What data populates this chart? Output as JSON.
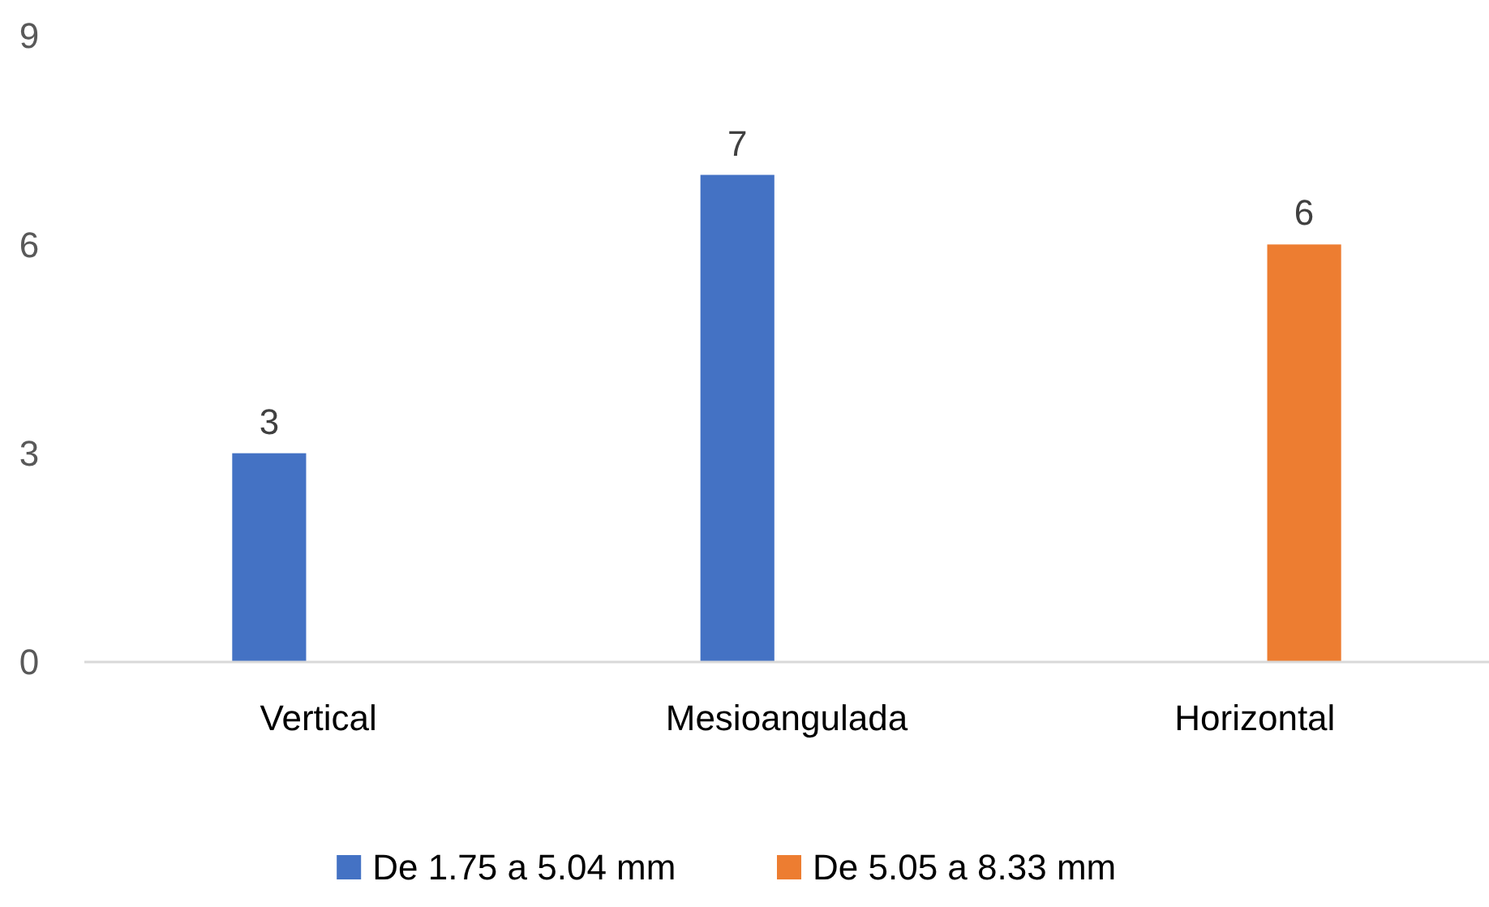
{
  "chart_data": {
    "type": "bar",
    "categories": [
      "Vertical",
      "Mesioangulada",
      "Horizontal"
    ],
    "series": [
      {
        "name": "De 1.75 a 5.04 mm",
        "color": "#4472c4",
        "values": [
          3,
          7,
          null
        ]
      },
      {
        "name": "De 5.05 a 8.33 mm",
        "color": "#ed7d31",
        "values": [
          null,
          null,
          6
        ]
      }
    ],
    "ylim": [
      0,
      9
    ],
    "yticks": [
      0,
      3,
      6,
      9
    ],
    "data_labels": true,
    "grid": false,
    "legend": "bottom"
  }
}
